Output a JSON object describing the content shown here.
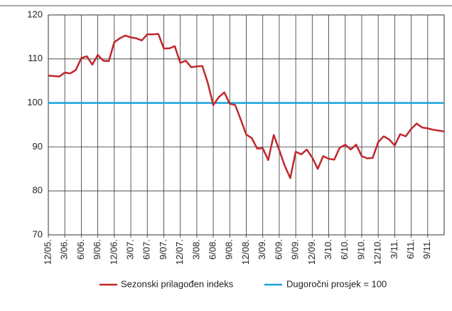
{
  "chart_data": {
    "type": "line",
    "categories": [
      "12/05.",
      null,
      null,
      "3/06.",
      null,
      null,
      "6/06.",
      null,
      null,
      "9/06.",
      null,
      null,
      "12/06.",
      null,
      null,
      "3/07.",
      null,
      null,
      "6/07.",
      null,
      null,
      "9/07.",
      null,
      null,
      "12/07.",
      null,
      null,
      "3/08.",
      null,
      null,
      "6/08.",
      null,
      null,
      "9/08.",
      null,
      null,
      "12/08.",
      null,
      null,
      "3/09.",
      null,
      null,
      "6/09.",
      null,
      null,
      "9/09.",
      null,
      null,
      "12/09.",
      null,
      null,
      "3/10.",
      null,
      null,
      "6/10.",
      null,
      null,
      "9/10.",
      null,
      null,
      "12/10.",
      null,
      null,
      "3/11.",
      null,
      null,
      "6/11.",
      null,
      null,
      "9/11.",
      null,
      null,
      null
    ],
    "series": [
      {
        "name": "Sezonski prilagođen indeks",
        "color": "#c0272d",
        "values": [
          106.2,
          106.1,
          106,
          106.9,
          106.7,
          107.5,
          110.2,
          110.6,
          108.7,
          110.9,
          109.6,
          109.5,
          113.8,
          114.7,
          115.3,
          114.9,
          114.7,
          114.2,
          115.6,
          115.6,
          115.7,
          112.4,
          112.4,
          112.9,
          109.1,
          109.6,
          108.1,
          108.3,
          108.4,
          104.6,
          99.5,
          101.3,
          102.4,
          99.8,
          99.5,
          96.2,
          92.8,
          92,
          89.6,
          89.7,
          87,
          92.7,
          89.3,
          85.7,
          82.9,
          88.9,
          88.3,
          89.4,
          87.6,
          85,
          87.9,
          87.3,
          87.1,
          89.8,
          90.5,
          89.4,
          90.5,
          87.9,
          87.4,
          87.5,
          91.1,
          92.4,
          91.7,
          90.3,
          92.9,
          92.4,
          94.1,
          95.3,
          94.4,
          94.2,
          93.9,
          93.7,
          93.5
        ]
      }
    ],
    "reference_line": {
      "name": "Dugoročni prosjek = 100",
      "color": "#1aa3d9",
      "value": 100
    },
    "ylim": [
      70,
      120
    ],
    "yticks": [
      70,
      80,
      90,
      100,
      110,
      120
    ],
    "grid": true
  }
}
